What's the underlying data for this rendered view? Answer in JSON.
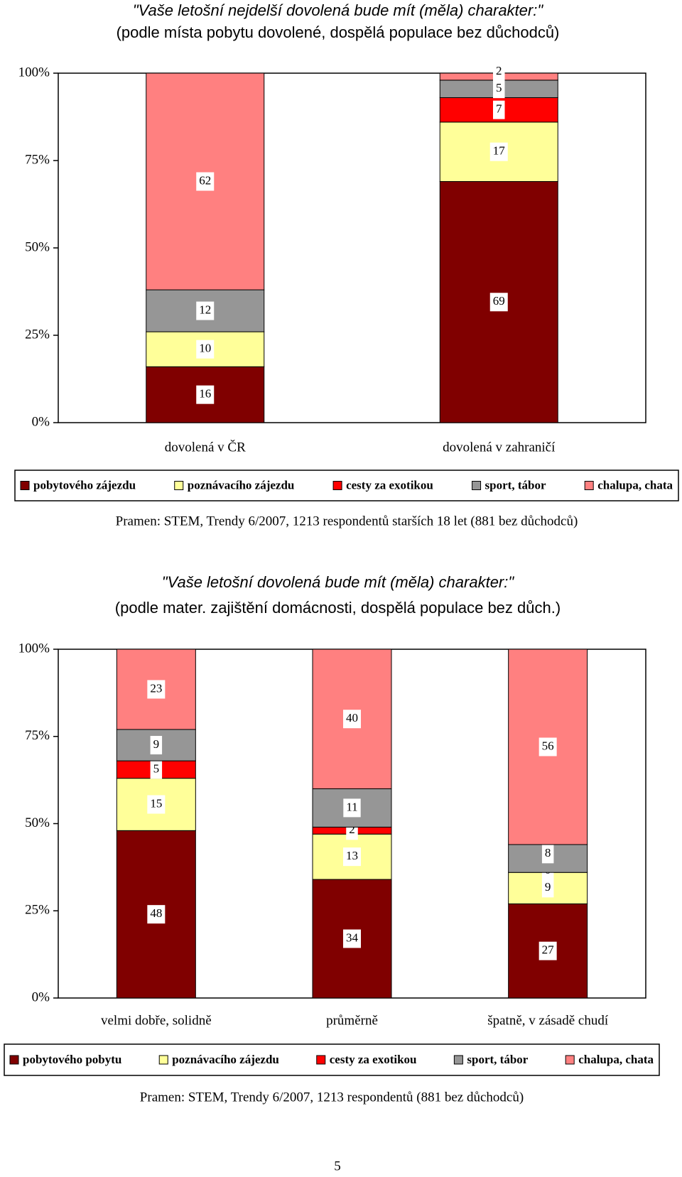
{
  "chart_data": [
    {
      "type": "bar",
      "stacked": true,
      "title": "\"Vaše letošní nejdelší dovolená bude mít (měla) charakter:\"",
      "subtitle": "(podle místa pobytu dovolené, dospělá populace bez důchodců)",
      "categories": [
        "dovolená v ČR",
        "dovolená v zahraničí"
      ],
      "series": [
        {
          "name": "pobytového zájezdu",
          "color": "#800000",
          "values": [
            16,
            69
          ]
        },
        {
          "name": "poznávacího zájezdu",
          "color": "#ffff99",
          "values": [
            10,
            17
          ]
        },
        {
          "name": "cesty za exotikou",
          "color": "#ff0000",
          "values": [
            null,
            7
          ]
        },
        {
          "name": "sport, tábor",
          "color": "#969696",
          "values": [
            12,
            5
          ]
        },
        {
          "name": "chalupa, chata",
          "color": "#ff8080",
          "values": [
            62,
            2
          ]
        }
      ],
      "ylim": [
        0,
        100
      ],
      "yticks": [
        {
          "value": 0,
          "label": "0%"
        },
        {
          "value": 25,
          "label": "25%"
        },
        {
          "value": 50,
          "label": "50%"
        },
        {
          "value": 75,
          "label": "75%"
        },
        {
          "value": 100,
          "label": "100%"
        }
      ],
      "legend": "bottom",
      "source": "Pramen: STEM, Trendy 6/2007, 1213 respondentů starších 18 let (881 bez důchodců)"
    },
    {
      "type": "bar",
      "stacked": true,
      "title": "\"Vaše letošní dovolená bude mít (měla) charakter:\"",
      "subtitle": "(podle mater. zajištění domácnosti, dospělá populace bez důch.)",
      "categories": [
        "velmi dobře, solidně",
        "průměrně",
        "špatně, v zásadě chudí"
      ],
      "series": [
        {
          "name": "pobytového pobytu",
          "color": "#800000",
          "values": [
            48,
            34,
            27
          ]
        },
        {
          "name": "poznávacího zájezdu",
          "color": "#ffff99",
          "values": [
            15,
            13,
            9
          ]
        },
        {
          "name": "cesty za exotikou",
          "color": "#ff0000",
          "values": [
            5,
            2,
            0
          ]
        },
        {
          "name": "sport, tábor",
          "color": "#969696",
          "values": [
            9,
            11,
            8
          ]
        },
        {
          "name": "chalupa, chata",
          "color": "#ff8080",
          "values": [
            23,
            40,
            56
          ]
        }
      ],
      "ylim": [
        0,
        100
      ],
      "yticks": [
        {
          "value": 0,
          "label": "0%"
        },
        {
          "value": 25,
          "label": "25%"
        },
        {
          "value": 50,
          "label": "50%"
        },
        {
          "value": 75,
          "label": "75%"
        },
        {
          "value": 100,
          "label": "100%"
        }
      ],
      "legend": "bottom",
      "source": "Pramen: STEM, Trendy 6/2007, 1213 respondentů (881 bez důchodců)"
    }
  ],
  "page_number": "5"
}
